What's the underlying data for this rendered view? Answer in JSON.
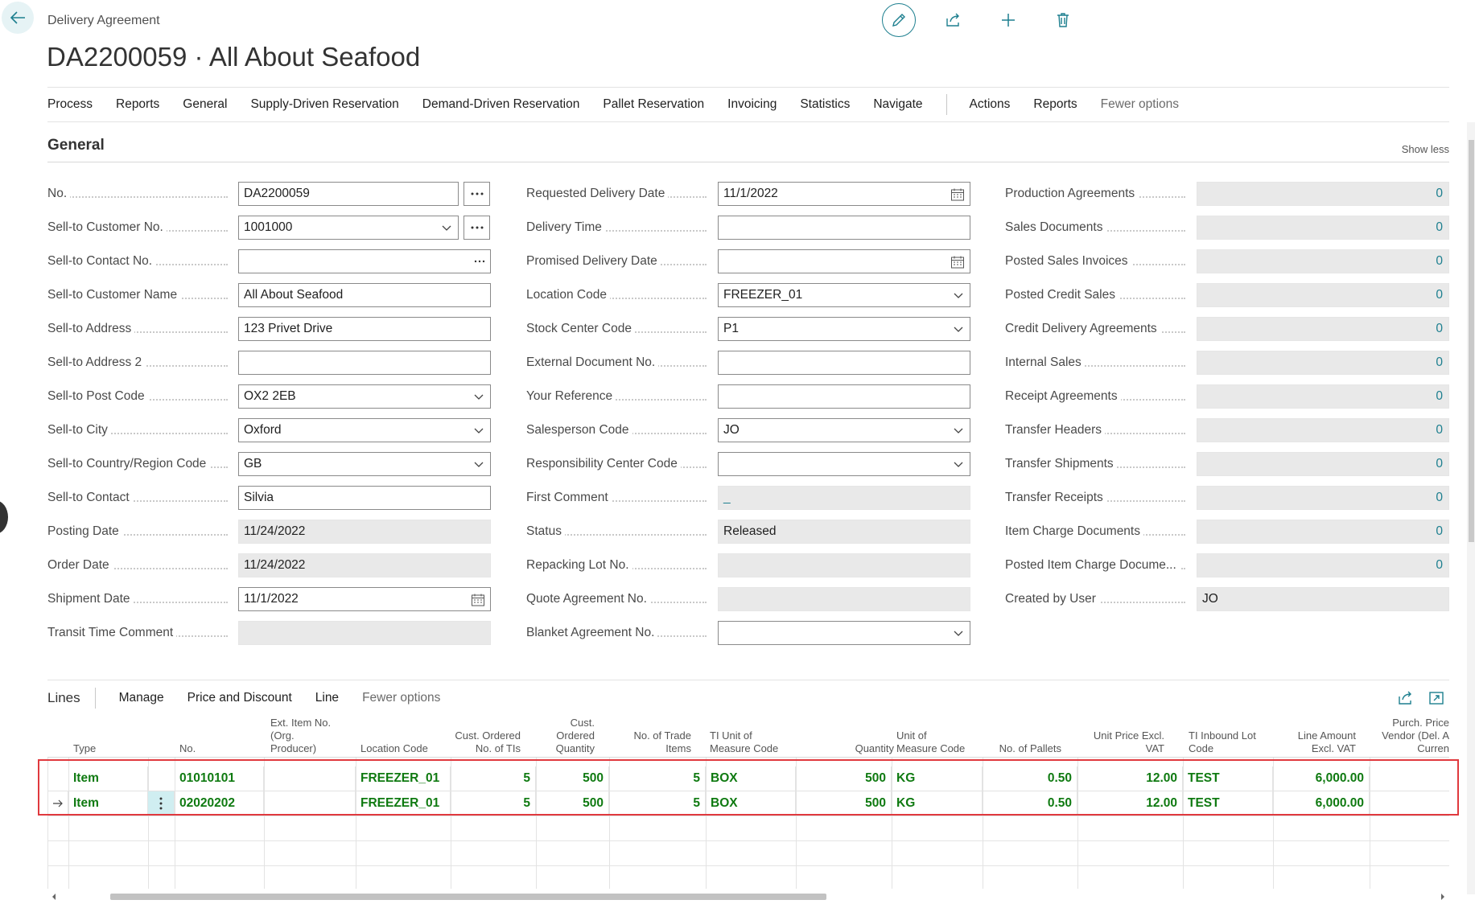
{
  "header": {
    "breadcrumb": "Delivery Agreement",
    "title": "DA2200059 · All About Seafood",
    "actions": [
      "pencil-icon",
      "share-icon",
      "plus-icon",
      "trash-icon"
    ]
  },
  "menu": {
    "items": [
      "Process",
      "Reports",
      "General",
      "Supply-Driven Reservation",
      "Demand-Driven Reservation",
      "Pallet Reservation",
      "Invoicing",
      "Statistics",
      "Navigate"
    ],
    "right_items": [
      "Actions",
      "Reports"
    ],
    "fewer_options": "Fewer options"
  },
  "general": {
    "title": "General",
    "show_less": "Show less",
    "col1": [
      {
        "label": "No.",
        "value": "DA2200059"
      },
      {
        "label": "Sell-to Customer No.",
        "value": "1001000"
      },
      {
        "label": "Sell-to Contact No.",
        "value": ""
      },
      {
        "label": "Sell-to Customer Name",
        "value": "All About Seafood"
      },
      {
        "label": "Sell-to Address",
        "value": "123 Privet Drive"
      },
      {
        "label": "Sell-to Address 2",
        "value": ""
      },
      {
        "label": "Sell-to Post Code",
        "value": "OX2 2EB"
      },
      {
        "label": "Sell-to City",
        "value": "Oxford"
      },
      {
        "label": "Sell-to Country/Region Code",
        "value": "GB"
      },
      {
        "label": "Sell-to Contact",
        "value": "Silvia"
      },
      {
        "label": "Posting Date",
        "value": "11/24/2022"
      },
      {
        "label": "Order Date",
        "value": "11/24/2022"
      },
      {
        "label": "Shipment Date",
        "value": "11/1/2022"
      },
      {
        "label": "Transit Time Comment",
        "value": ""
      }
    ],
    "col2": [
      {
        "label": "Requested Delivery Date",
        "value": "11/1/2022"
      },
      {
        "label": "Delivery Time",
        "value": ""
      },
      {
        "label": "Promised Delivery Date",
        "value": ""
      },
      {
        "label": "Location Code",
        "value": "FREEZER_01"
      },
      {
        "label": "Stock Center Code",
        "value": "P1"
      },
      {
        "label": "External Document No.",
        "value": ""
      },
      {
        "label": "Your Reference",
        "value": ""
      },
      {
        "label": "Salesperson Code",
        "value": "JO"
      },
      {
        "label": "Responsibility Center Code",
        "value": ""
      },
      {
        "label": "First Comment",
        "value": "_"
      },
      {
        "label": "Status",
        "value": "Released"
      },
      {
        "label": "Repacking Lot No.",
        "value": ""
      },
      {
        "label": "Quote Agreement No.",
        "value": ""
      },
      {
        "label": "Blanket Agreement No.",
        "value": ""
      }
    ],
    "col3": [
      {
        "label": "Production Agreements",
        "value": "0"
      },
      {
        "label": "Sales Documents",
        "value": "0"
      },
      {
        "label": "Posted Sales Invoices",
        "value": "0"
      },
      {
        "label": "Posted Credit Sales",
        "value": "0"
      },
      {
        "label": "Credit Delivery Agreements",
        "value": "0"
      },
      {
        "label": "Internal Sales",
        "value": "0"
      },
      {
        "label": "Receipt Agreements",
        "value": "0"
      },
      {
        "label": "Transfer Headers",
        "value": "0"
      },
      {
        "label": "Transfer Shipments",
        "value": "0"
      },
      {
        "label": "Transfer Receipts",
        "value": "0"
      },
      {
        "label": "Item Charge Documents",
        "value": "0"
      },
      {
        "label": "Posted Item Charge Docume...",
        "value": "0"
      },
      {
        "label": "Created by User",
        "value": "JO"
      }
    ]
  },
  "lines": {
    "title": "Lines",
    "actions": [
      "Manage",
      "Price and Discount",
      "Line",
      "Fewer options"
    ],
    "headers": {
      "type": "Type",
      "no": "No.",
      "ext1": "Ext. Item No.",
      "ext2": "(Org.",
      "ext3": "Producer)",
      "loc": "Location Code",
      "coti1": "Cust. Ordered",
      "coti2": "No. of TIs",
      "coq1": "Cust.",
      "coq2": "Ordered",
      "coq3": "Quantity",
      "nti1": "No. of Trade",
      "nti2": "Items",
      "tiu1": "TI Unit of",
      "tiu2": "Measure Code",
      "qty": "Quantity",
      "uom1": "Unit of",
      "uom2": "Measure Code",
      "pal": "No. of Pallets",
      "upr1": "Unit Price Excl.",
      "upr2": "VAT",
      "lot1": "TI Inbound Lot",
      "lot2": "Code",
      "amt1": "Line Amount",
      "amt2": "Excl. VAT",
      "pp1": "Purch. Price",
      "pp2": "Vendor (Del. A",
      "pp3": "Curren"
    },
    "rows": [
      {
        "type": "Item",
        "no": "01010101",
        "ext": "",
        "loc": "FREEZER_01",
        "coti": "5",
        "coq": "500",
        "nti": "5",
        "tiu": "BOX",
        "qty": "500",
        "uom": "KG",
        "pal": "0.50",
        "upr": "12.00",
        "lot": "TEST",
        "amt": "6,000.00"
      },
      {
        "type": "Item",
        "no": "02020202",
        "ext": "",
        "loc": "FREEZER_01",
        "coti": "5",
        "coq": "500",
        "nti": "5",
        "tiu": "BOX",
        "qty": "500",
        "uom": "KG",
        "pal": "0.50",
        "upr": "12.00",
        "lot": "TEST",
        "amt": "6,000.00"
      }
    ]
  },
  "colors": {
    "accent": "#1d7f8f",
    "line_text": "#0f7a11",
    "highlight": "#e0393e"
  }
}
